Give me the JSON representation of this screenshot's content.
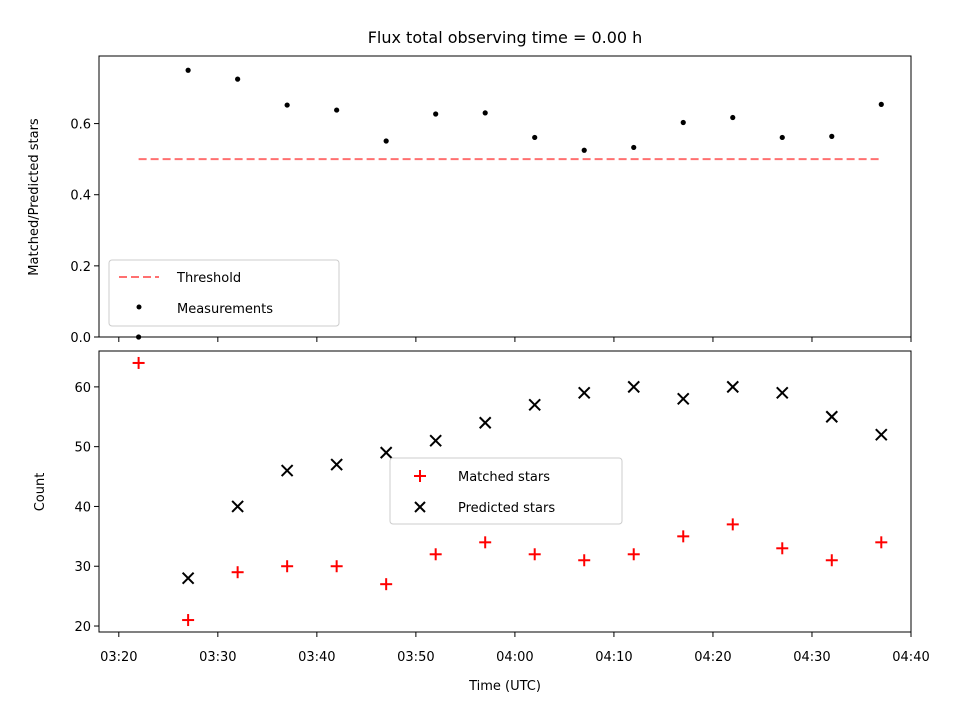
{
  "chart_data": [
    {
      "type": "scatter",
      "title": "Flux total observing time = 0.00 h",
      "xlabel": "",
      "ylabel": "Matched/Predicted stars",
      "xlim": [
        "03:18",
        "04:40"
      ],
      "ylim": [
        0,
        0.79
      ],
      "yticks": [
        0.0,
        0.2,
        0.4,
        0.6
      ],
      "ytick_labels": [
        "0.0",
        "0.2",
        "0.4",
        "0.6"
      ],
      "grid": false,
      "legend_position": "lower-left",
      "series": [
        {
          "name": "Threshold",
          "style": "dashed-line",
          "color": "#ff7070",
          "x": [
            "03:22",
            "04:37"
          ],
          "y": [
            0.5,
            0.5
          ]
        },
        {
          "name": "Measurements",
          "style": "dot",
          "color": "#000000",
          "x": [
            "03:22",
            "03:27",
            "03:32",
            "03:37",
            "03:42",
            "03:47",
            "03:52",
            "03:57",
            "04:02",
            "04:07",
            "04:12",
            "04:17",
            "04:22",
            "04:27",
            "04:32",
            "04:37"
          ],
          "y": [
            0.0,
            0.75,
            0.725,
            0.652,
            0.638,
            0.551,
            0.627,
            0.63,
            0.561,
            0.525,
            0.533,
            0.603,
            0.617,
            0.561,
            0.564,
            0.654
          ]
        }
      ]
    },
    {
      "type": "scatter",
      "title": "",
      "xlabel": "Time (UTC)",
      "ylabel": "Count",
      "xlim": [
        "03:18",
        "04:40"
      ],
      "ylim": [
        19,
        66
      ],
      "xticks": [
        "03:20",
        "03:30",
        "03:40",
        "03:50",
        "04:00",
        "04:10",
        "04:20",
        "04:30",
        "04:40"
      ],
      "yticks": [
        20,
        30,
        40,
        50,
        60
      ],
      "grid": false,
      "legend_position": "center",
      "series": [
        {
          "name": "Matched stars",
          "style": "plus",
          "color": "#ff0000",
          "x": [
            "03:22",
            "03:27",
            "03:32",
            "03:37",
            "03:42",
            "03:47",
            "03:52",
            "03:57",
            "04:02",
            "04:07",
            "04:12",
            "04:17",
            "04:22",
            "04:27",
            "04:32",
            "04:37"
          ],
          "y": [
            64,
            21,
            29,
            30,
            30,
            27,
            32,
            34,
            32,
            31,
            32,
            35,
            37,
            33,
            31,
            34
          ]
        },
        {
          "name": "Predicted stars",
          "style": "x",
          "color": "#000000",
          "x": [
            "03:27",
            "03:32",
            "03:37",
            "03:42",
            "03:47",
            "03:52",
            "03:57",
            "04:02",
            "04:07",
            "04:12",
            "04:17",
            "04:22",
            "04:27",
            "04:32",
            "04:37"
          ],
          "y": [
            28,
            40,
            46,
            47,
            49,
            51,
            54,
            57,
            59,
            60,
            58,
            60,
            59,
            55,
            52
          ]
        }
      ]
    }
  ]
}
